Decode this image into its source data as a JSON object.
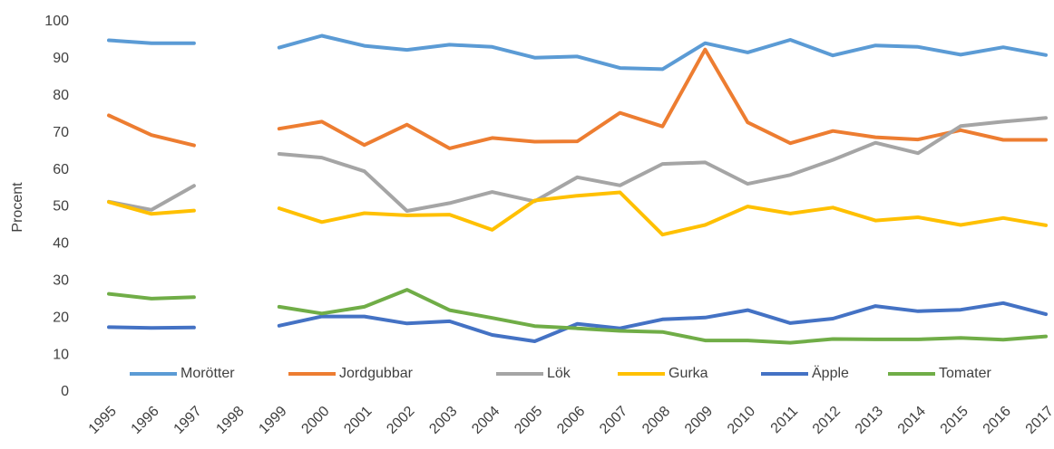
{
  "chart_data": {
    "type": "line",
    "y_label": "Procent",
    "categories": [
      "1995",
      "1996",
      "1997",
      "1998",
      "1999",
      "2000",
      "2001",
      "2002",
      "2003",
      "2004",
      "2005",
      "2006",
      "2007",
      "2008",
      "2009",
      "2010",
      "2011",
      "2012",
      "2013",
      "2014",
      "2015",
      "2016",
      "2017"
    ],
    "series": [
      {
        "name": "Morötter",
        "color": "#5b9bd5",
        "values": [
          95,
          94.2,
          94.2,
          null,
          93,
          96.2,
          93.5,
          92.4,
          93.8,
          93.2,
          90.3,
          90.6,
          87.5,
          87.2,
          94.2,
          91.7,
          95.1,
          90.9,
          93.6,
          93.2,
          91.1,
          93.1,
          91
        ]
      },
      {
        "name": "Jordgubbar",
        "color": "#ed7d31",
        "values": [
          74.7,
          69.4,
          66.6,
          null,
          71.1,
          73,
          66.7,
          72.2,
          65.8,
          68.6,
          67.6,
          67.7,
          75.4,
          71.7,
          92.5,
          72.8,
          67.2,
          70.5,
          68.8,
          68.2,
          70.7,
          68.1,
          68.1
        ]
      },
      {
        "name": "Lök",
        "color": "#a5a5a5",
        "values": [
          51.4,
          49.2,
          55.7,
          null,
          64.3,
          63.3,
          59.6,
          48.9,
          51,
          54,
          51.5,
          58,
          55.8,
          61.6,
          62,
          56.2,
          58.6,
          62.7,
          67.3,
          64.5,
          71.8,
          73,
          74
        ]
      },
      {
        "name": "Gurka",
        "color": "#ffc000",
        "values": [
          51.3,
          48.1,
          49,
          null,
          49.6,
          45.9,
          48.3,
          47.7,
          47.9,
          43.8,
          51.7,
          53,
          53.9,
          42.5,
          45.1,
          50.1,
          48.2,
          49.8,
          46.3,
          47.2,
          45.1,
          47,
          45
        ]
      },
      {
        "name": "Äpple",
        "color": "#4472c4",
        "values": [
          17.5,
          17.3,
          17.4,
          null,
          17.9,
          20.4,
          20.4,
          18.5,
          19.1,
          15.4,
          13.7,
          18.4,
          17.2,
          19.6,
          20.1,
          22.1,
          18.6,
          19.8,
          23.2,
          21.8,
          22.2,
          24,
          21
        ]
      },
      {
        "name": "Tomater",
        "color": "#70ad47",
        "values": [
          26.5,
          25.2,
          25.6,
          null,
          23,
          21.2,
          23,
          27.6,
          22.1,
          20,
          17.8,
          17.2,
          16.5,
          16.2,
          13.9,
          13.9,
          13.3,
          14.3,
          14.2,
          14.2,
          14.6,
          14.1,
          15
        ]
      }
    ],
    "ylim": [
      0,
      100
    ],
    "yticks": [
      0,
      10,
      20,
      30,
      40,
      50,
      60,
      70,
      80,
      90,
      100
    ],
    "grid": false,
    "legend": "bottom"
  }
}
